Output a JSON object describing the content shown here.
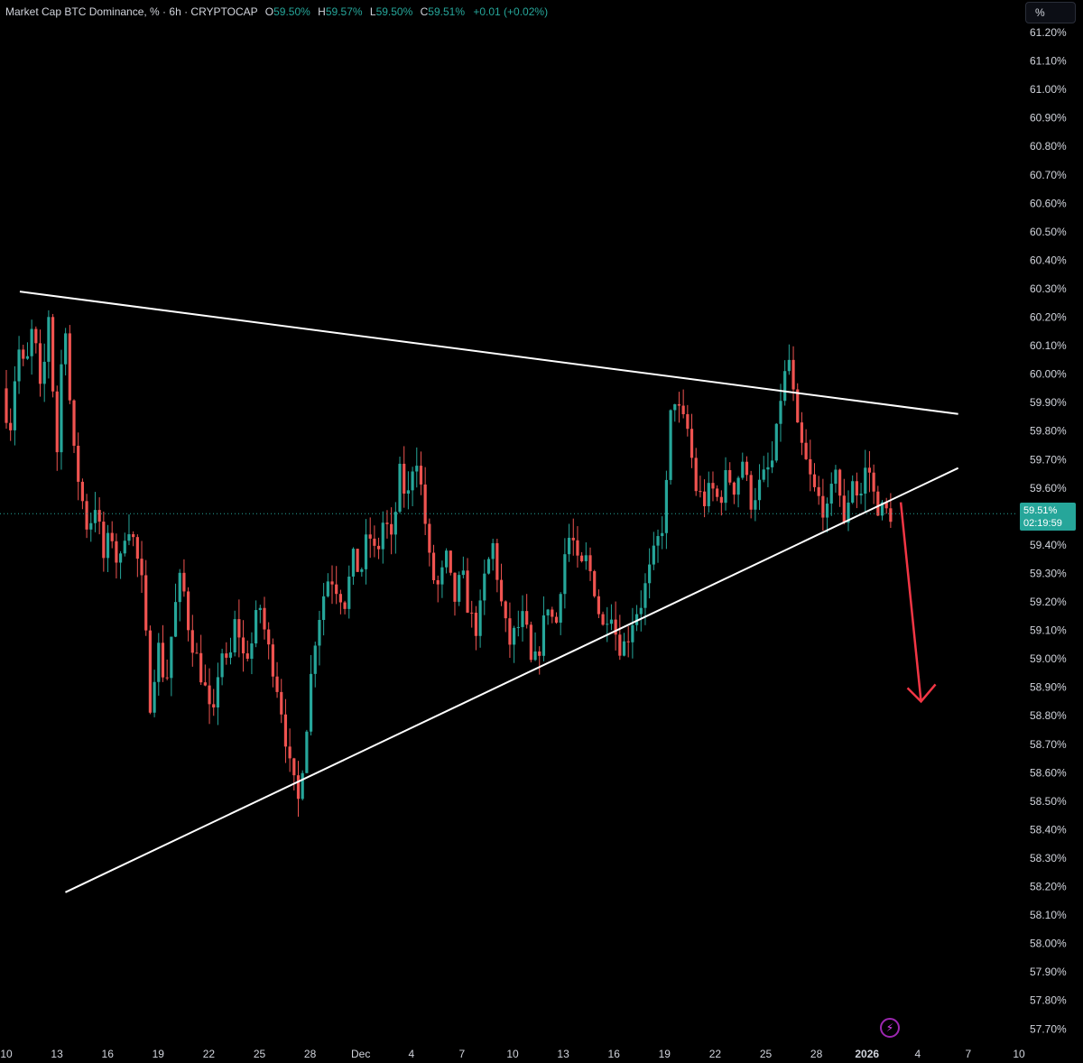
{
  "legend": {
    "title": "Market Cap BTC Dominance, % · 6h · CRYPTOCAP",
    "o_label": "O",
    "o_value": "59.50%",
    "h_label": "H",
    "h_value": "59.57%",
    "l_label": "L",
    "l_value": "59.50%",
    "c_label": "C",
    "c_value": "59.51%",
    "change": "+0.01 (+0.02%)"
  },
  "scale_button": "%",
  "price_badge": {
    "price": "59.51%",
    "countdown": "02:19:59"
  },
  "colors": {
    "background": "#000000",
    "up": "#26a69a",
    "down": "#ef5350",
    "trendline": "#ffffff",
    "arrow": "#f23645",
    "axis_text": "#d1d4dc"
  },
  "icons": {
    "bolt": "lightning-bolt-icon"
  },
  "chart_data": {
    "type": "candlestick",
    "title": "Market Cap BTC Dominance, % · 6h · CRYPTOCAP",
    "y_unit": "%",
    "ylim": [
      57.7,
      61.25
    ],
    "y_ticks": [
      "61.20%",
      "61.10%",
      "61.00%",
      "60.90%",
      "60.80%",
      "60.70%",
      "60.60%",
      "60.50%",
      "60.40%",
      "60.30%",
      "60.20%",
      "60.10%",
      "60.00%",
      "59.90%",
      "59.80%",
      "59.70%",
      "59.60%",
      "59.50%",
      "59.40%",
      "59.30%",
      "59.20%",
      "59.10%",
      "59.00%",
      "58.90%",
      "58.80%",
      "58.70%",
      "58.60%",
      "58.50%",
      "58.40%",
      "58.30%",
      "58.20%",
      "58.10%",
      "58.00%",
      "57.90%",
      "57.80%",
      "57.70%"
    ],
    "x_ticks": [
      {
        "label": "10",
        "day": 0,
        "bold": false
      },
      {
        "label": "13",
        "day": 3,
        "bold": false
      },
      {
        "label": "16",
        "day": 6,
        "bold": false
      },
      {
        "label": "19",
        "day": 9,
        "bold": false
      },
      {
        "label": "22",
        "day": 12,
        "bold": false
      },
      {
        "label": "25",
        "day": 15,
        "bold": false
      },
      {
        "label": "28",
        "day": 18,
        "bold": false
      },
      {
        "label": "Dec",
        "day": 21,
        "bold": false
      },
      {
        "label": "4",
        "day": 24,
        "bold": false
      },
      {
        "label": "7",
        "day": 27,
        "bold": false
      },
      {
        "label": "10",
        "day": 30,
        "bold": false
      },
      {
        "label": "13",
        "day": 33,
        "bold": false
      },
      {
        "label": "16",
        "day": 36,
        "bold": false
      },
      {
        "label": "19",
        "day": 39,
        "bold": false
      },
      {
        "label": "22",
        "day": 42,
        "bold": false
      },
      {
        "label": "25",
        "day": 45,
        "bold": false
      },
      {
        "label": "28",
        "day": 48,
        "bold": false
      },
      {
        "label": "2026",
        "day": 51,
        "bold": true
      },
      {
        "label": "4",
        "day": 54,
        "bold": false
      },
      {
        "label": "7",
        "day": 57,
        "bold": false
      },
      {
        "label": "10",
        "day": 60,
        "bold": false
      }
    ],
    "last_price": 59.51,
    "trendlines": [
      {
        "name": "resistance",
        "from": {
          "day": 0.8,
          "price": 60.29
        },
        "to": {
          "day": 56.4,
          "price": 59.86
        }
      },
      {
        "name": "support",
        "from": {
          "day": 3.5,
          "price": 58.18
        },
        "to": {
          "day": 56.4,
          "price": 59.67
        }
      }
    ],
    "projection_arrow": {
      "from": {
        "day": 53.0,
        "price": 59.55
      },
      "to": {
        "day": 54.2,
        "price": 58.85
      }
    },
    "path": [
      59.95,
      59.8,
      60.1,
      60.0,
      60.18,
      59.9,
      60.22,
      59.7,
      60.25,
      59.75,
      59.6,
      59.45,
      59.55,
      59.35,
      59.45,
      59.3,
      59.5,
      59.4,
      59.25,
      58.85,
      59.05,
      58.9,
      59.15,
      59.3,
      59.1,
      59.0,
      58.9,
      58.75,
      59.05,
      58.95,
      59.15,
      59.0,
      59.05,
      59.2,
      59.05,
      58.95,
      58.8,
      58.6,
      58.5,
      58.75,
      59.05,
      59.2,
      59.3,
      59.25,
      59.2,
      59.35,
      59.3,
      59.45,
      59.35,
      59.5,
      59.4,
      59.65,
      59.55,
      59.75,
      59.55,
      59.3,
      59.25,
      59.35,
      59.2,
      59.3,
      59.15,
      59.1,
      59.3,
      59.4,
      59.2,
      59.05,
      59.1,
      59.15,
      58.95,
      59.05,
      59.2,
      59.1,
      59.35,
      59.45,
      59.3,
      59.35,
      59.25,
      59.1,
      59.2,
      59.05,
      59.05,
      59.15,
      59.2,
      59.3,
      59.4,
      59.5,
      59.95,
      59.85,
      59.8,
      59.6,
      59.55,
      59.6,
      59.55,
      59.65,
      59.6,
      59.7,
      59.55,
      59.6,
      59.65,
      59.7,
      59.95,
      60.05,
      59.8,
      59.7,
      59.6,
      59.55,
      59.5,
      59.7,
      59.45,
      59.65,
      59.55,
      59.7,
      59.55,
      59.52,
      59.51
    ]
  }
}
